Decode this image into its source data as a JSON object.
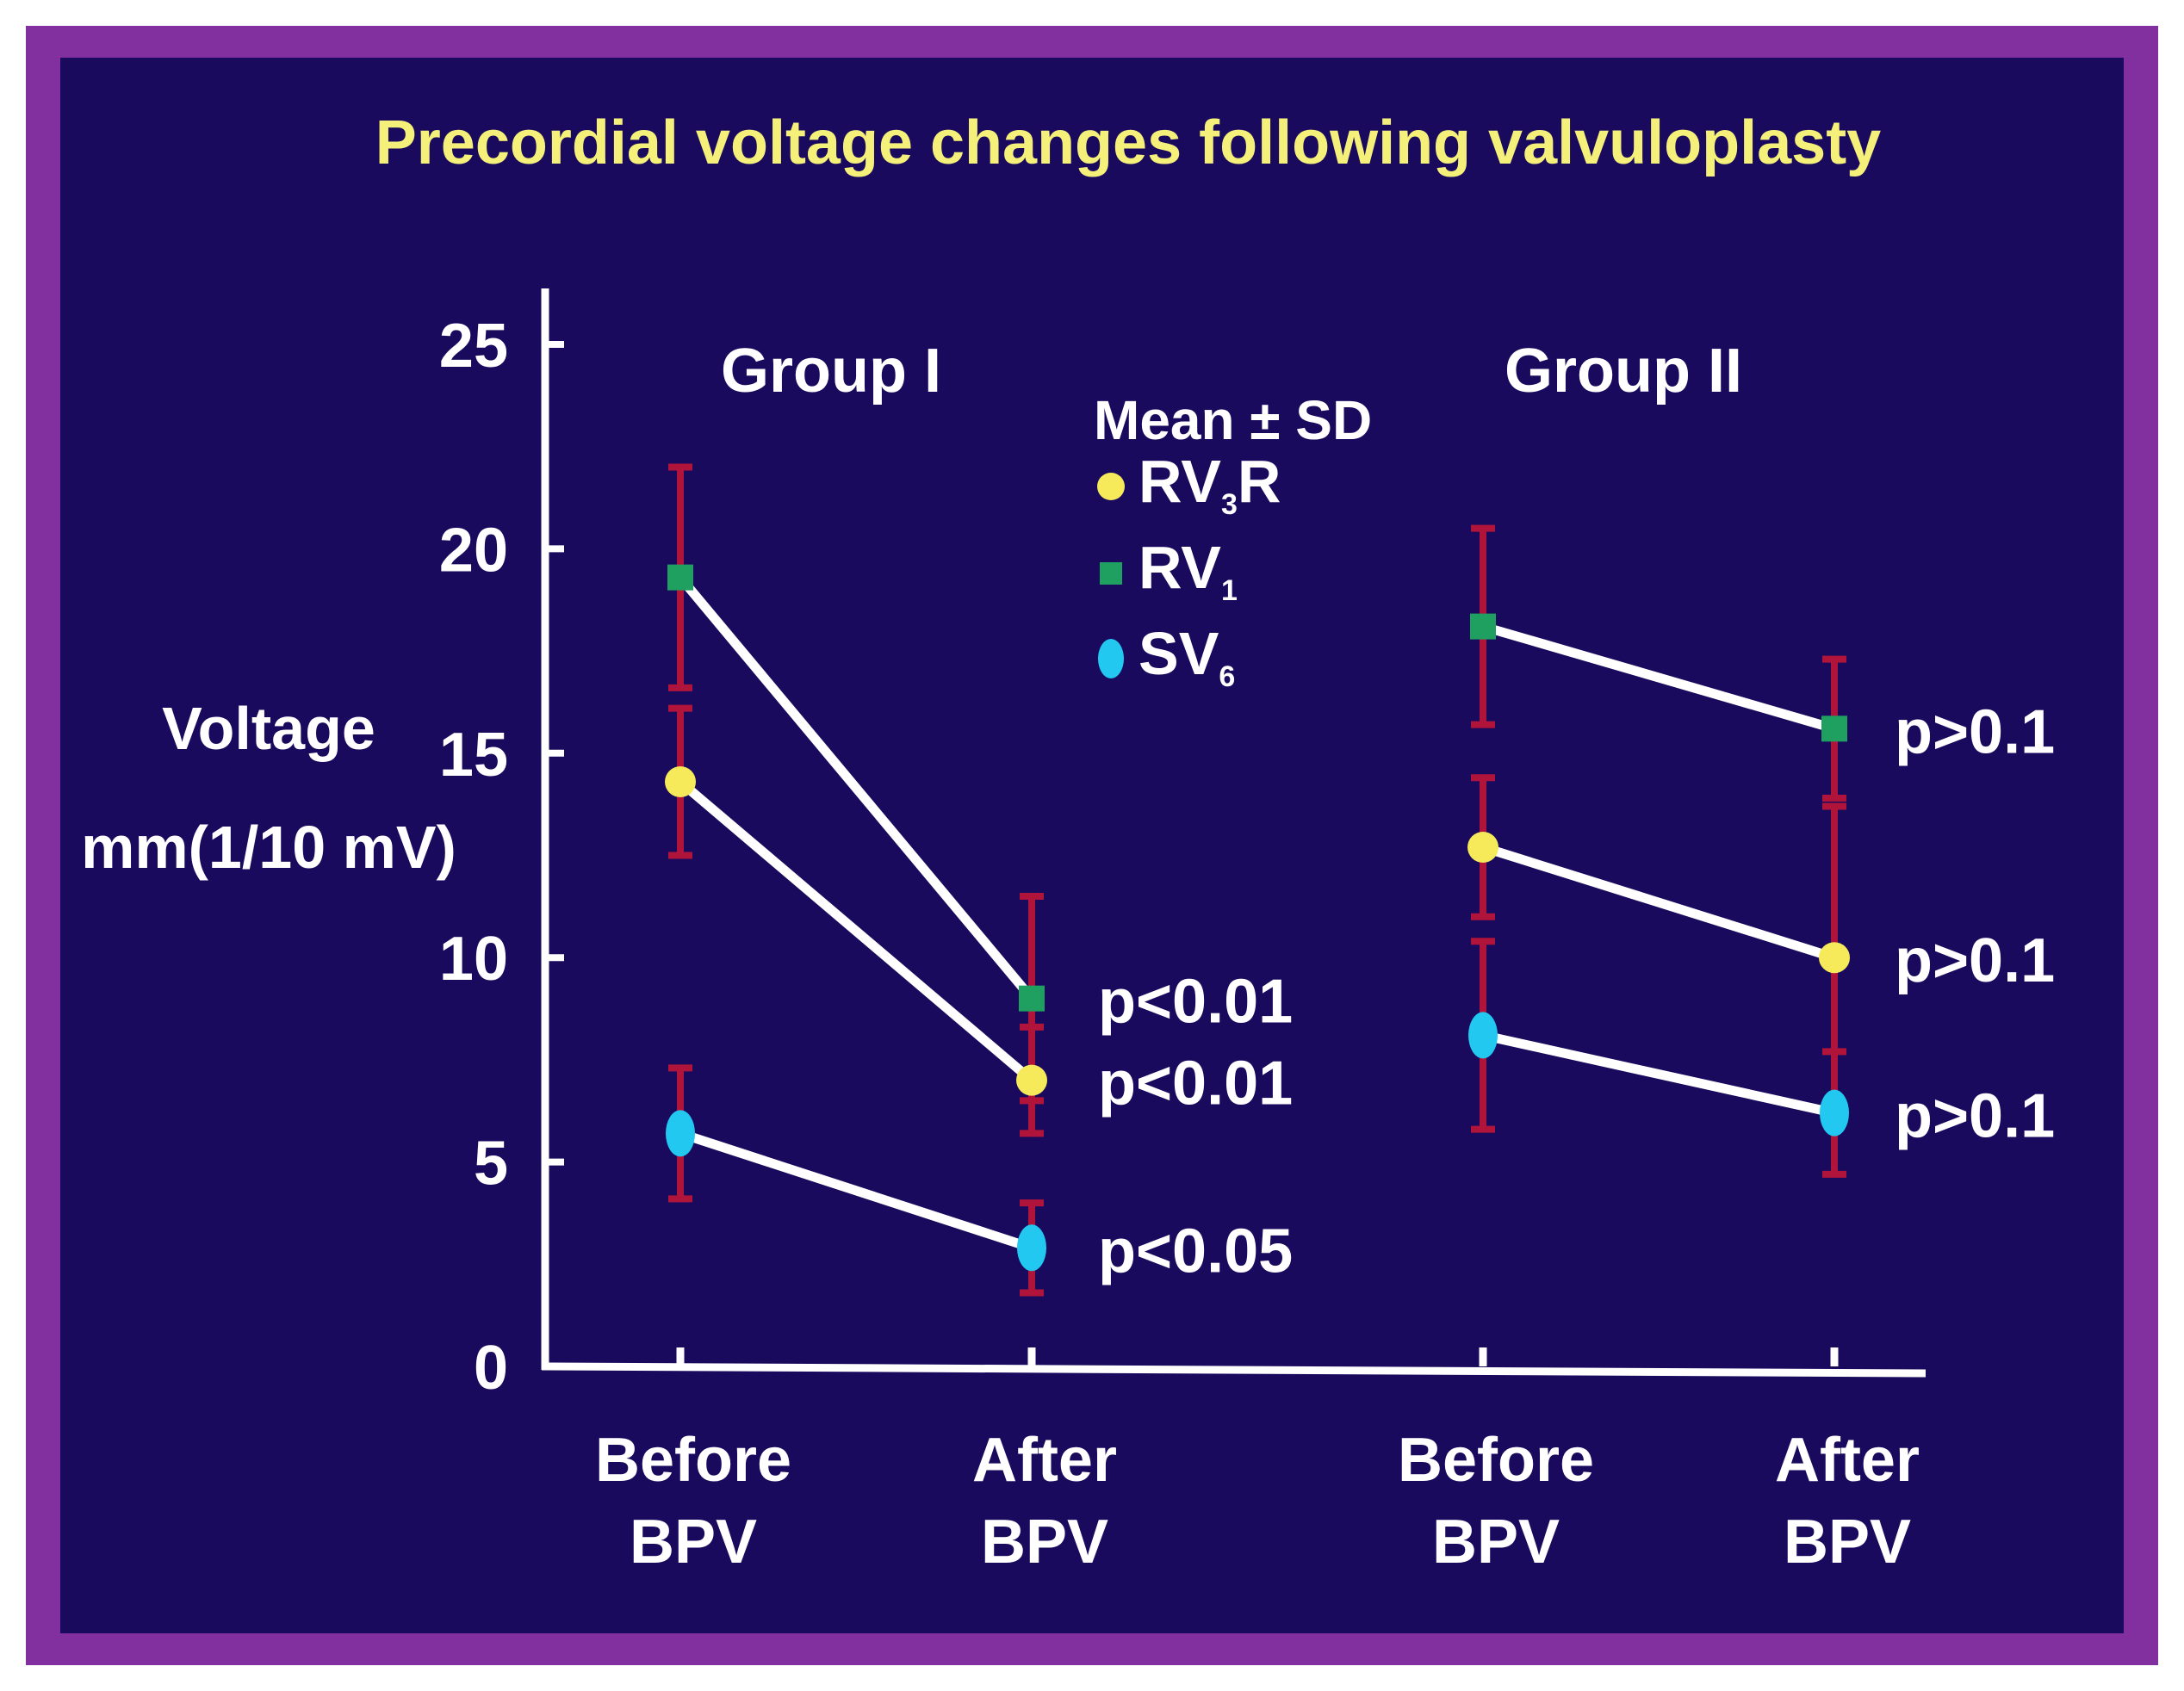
{
  "chart_data": {
    "type": "line",
    "title": "Precordial voltage changes following valvuloplasty",
    "ylabel_line1": "Voltage",
    "ylabel_line2": "mm(1/10 mV)",
    "ylim": [
      0,
      25
    ],
    "yticks": [
      "0",
      "5",
      "10",
      "15",
      "20",
      "25"
    ],
    "legend_title": "Mean ± SD",
    "legend": [
      {
        "key": "rv3r",
        "main": "RV",
        "sub": "3",
        "suffix": "R",
        "marker": "circle",
        "color": "#f6ea5a"
      },
      {
        "key": "rv1",
        "main": "RV",
        "sub": "1",
        "suffix": "",
        "marker": "square",
        "color": "#1fa060"
      },
      {
        "key": "sv6",
        "main": "SV",
        "sub": "6",
        "suffix": "",
        "marker": "ellipse",
        "color": "#22c8f0"
      }
    ],
    "groups": [
      {
        "name": "Group  I",
        "categories": [
          [
            "Before",
            "BPV"
          ],
          [
            "After",
            "BPV"
          ]
        ],
        "series": [
          {
            "key": "rv1",
            "values": [
              19.3,
              9.0
            ],
            "sd": [
              2.7,
              2.5
            ],
            "p": "p<0.01"
          },
          {
            "key": "rv3r",
            "values": [
              14.3,
              7.0
            ],
            "sd": [
              1.8,
              1.3
            ],
            "p": "p<0.01"
          },
          {
            "key": "sv6",
            "values": [
              5.7,
              2.9
            ],
            "sd": [
              1.6,
              1.1
            ],
            "p": "p<0.05"
          }
        ]
      },
      {
        "name": "Group  II",
        "categories": [
          [
            "Before",
            "BPV"
          ],
          [
            "After",
            "BPV"
          ]
        ],
        "series": [
          {
            "key": "rv1",
            "values": [
              18.1,
              15.6
            ],
            "sd": [
              2.4,
              1.7
            ],
            "p": "p>0.1"
          },
          {
            "key": "rv3r",
            "values": [
              12.7,
              10.0
            ],
            "sd": [
              1.7,
              3.7
            ],
            "p": "p>0.1"
          },
          {
            "key": "sv6",
            "values": [
              8.1,
              6.2
            ],
            "sd": [
              2.3,
              1.5
            ],
            "p": "p>0.1"
          }
        ]
      }
    ],
    "colors": {
      "line": "#ffffff",
      "errorbar": "#b0143a",
      "axis": "#ffffff",
      "title": "#f4f07a"
    }
  }
}
